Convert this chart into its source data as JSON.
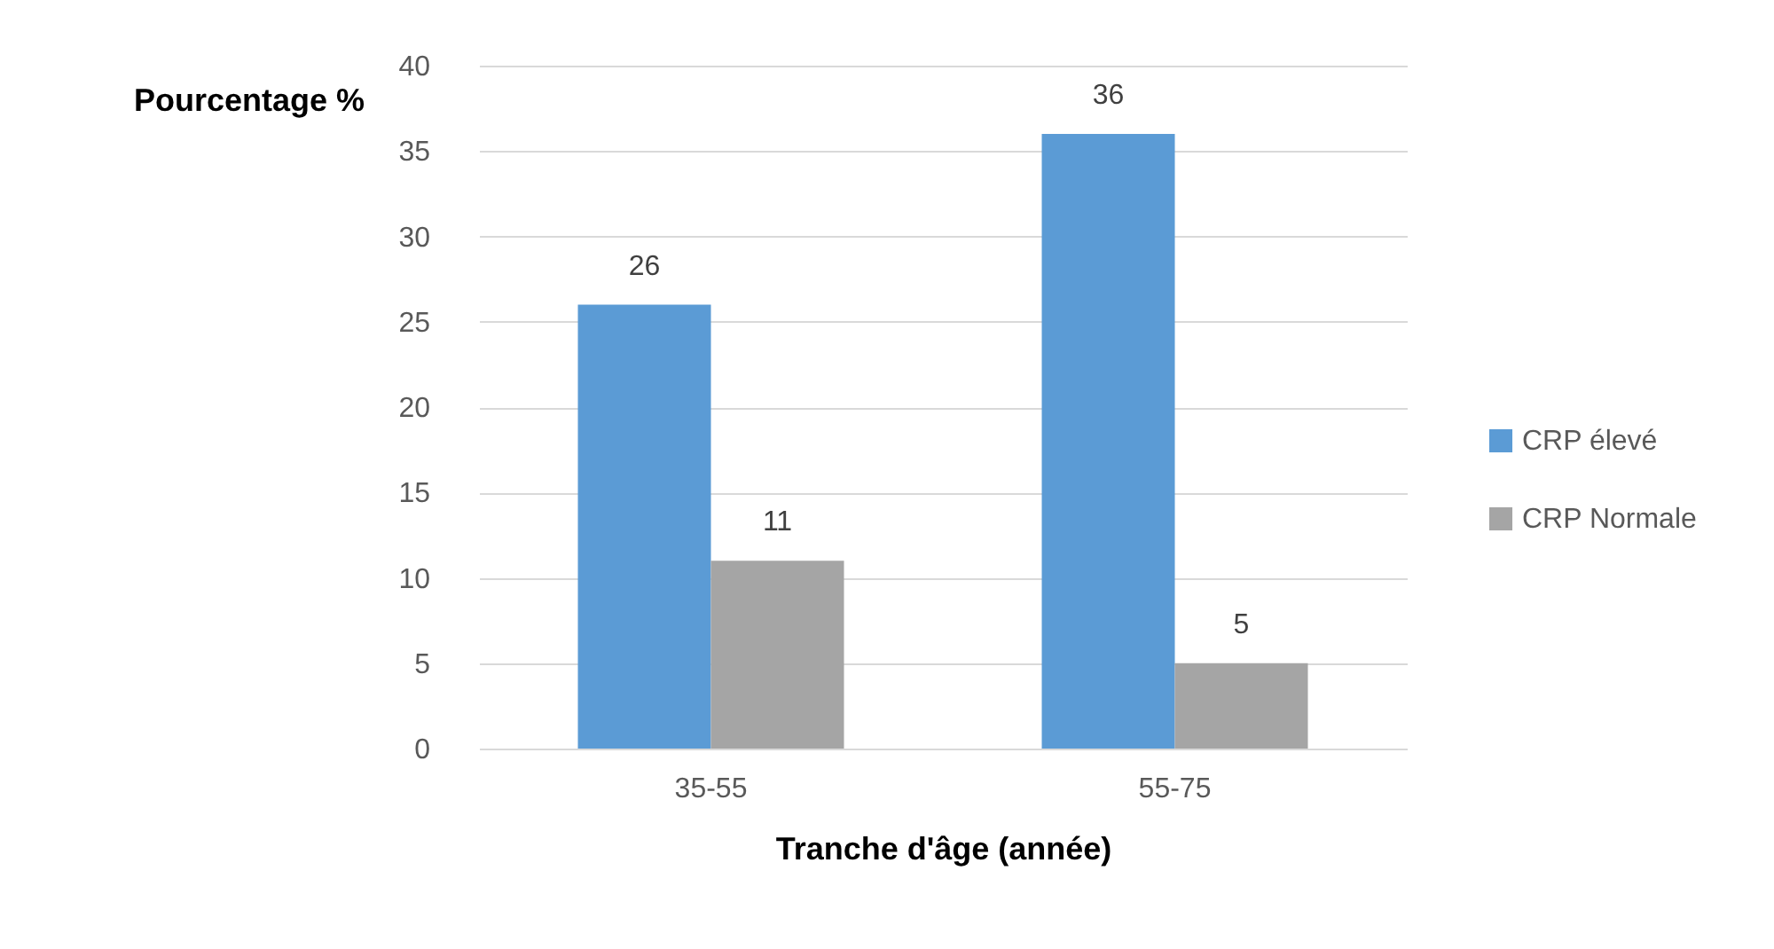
{
  "chart_data": {
    "type": "bar",
    "xlabel": "Tranche d'âge (année)",
    "ylabel": "Pourcentage %",
    "categories": [
      "35-55",
      "55-75"
    ],
    "series": [
      {
        "name": "CRP élevé",
        "color": "#5b9bd5",
        "values": [
          26,
          36
        ]
      },
      {
        "name": "CRP Normale",
        "color": "#a5a5a5",
        "values": [
          11,
          5
        ]
      }
    ],
    "ylim": [
      0,
      40
    ],
    "yticks": [
      0,
      5,
      10,
      15,
      20,
      25,
      30,
      35,
      40
    ],
    "grid": "y",
    "legend": "right",
    "data_labels": true
  }
}
